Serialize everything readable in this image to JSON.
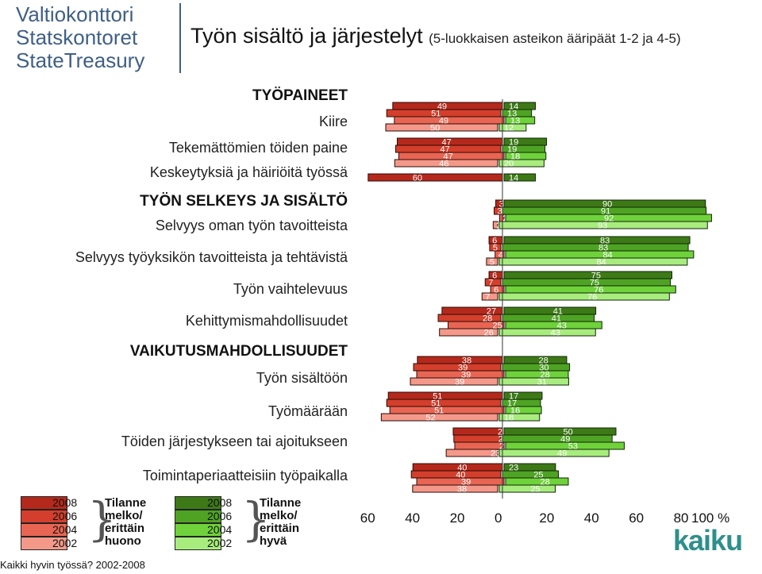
{
  "org": {
    "line1": "Valtiokonttori",
    "line2": "Statskontoret",
    "line3": "StateTreasury"
  },
  "title": {
    "main": "Työn sisältö ja järjestelyt",
    "sub": "(5-luokkaisen asteikon ääripäät 1-2 ja 4-5)"
  },
  "colors": {
    "red": [
      "#b5291c",
      "#d33f2c",
      "#e96553",
      "#f4998a"
    ],
    "green": [
      "#3d7a17",
      "#4fa324",
      "#6fd23b",
      "#a8ec7e"
    ]
  },
  "legend": {
    "years": [
      "2008",
      "2006",
      "2004",
      "2002"
    ],
    "neg_label_1": "Tilanne",
    "neg_label_2": "melko/",
    "neg_label_3": "erittäin",
    "neg_label_4": "huono",
    "pos_label_1": "Tilanne",
    "pos_label_2": "melko/",
    "pos_label_3": "erittäin",
    "pos_label_4": "hyvä"
  },
  "footer": "Kaikki hyvin työssä? 2002-2008",
  "logo": {
    "text": "kaiku",
    "dots": "···"
  },
  "chart_data": {
    "type": "bar",
    "orientation": "horizontal-diverging",
    "title": "Työn sisältö ja järjestelyt",
    "subtitle": "(5-luokkaisen asteikon ääripäät 1-2 ja 4-5)",
    "series_years": [
      "2008",
      "2006",
      "2004",
      "2002"
    ],
    "x_ticks": [
      "60",
      "40",
      "20",
      "0",
      "20",
      "40",
      "60",
      "80",
      "100 %"
    ],
    "xlim": [
      -60,
      100
    ],
    "headers": [
      "TYÖPAINEET",
      "TYÖN SELKEYS JA SISÄLTÖ",
      "VAIKUTUSMAHDOLLISUUDET"
    ],
    "categories": [
      {
        "label": "Kiire",
        "neg": [
          49,
          51,
          49,
          50
        ],
        "pos": [
          14,
          13,
          13,
          12
        ]
      },
      {
        "label": "Tekemättömien töiden paine",
        "neg": [
          47,
          47,
          47,
          46
        ],
        "pos": [
          19,
          19,
          18,
          20
        ]
      },
      {
        "label": "Keskeytyksiä ja häiriöitä työssä",
        "neg": [
          60
        ],
        "pos": [
          14
        ]
      },
      {
        "label": "Selvyys oman työn tavoitteista",
        "neg": [
          3,
          3,
          2,
          2
        ],
        "pos": [
          90,
          91,
          92,
          93
        ]
      },
      {
        "label": "Selvyys työyksikön tavoitteista ja tehtävistä",
        "neg": [
          6,
          5,
          4,
          5
        ],
        "pos": [
          83,
          83,
          84,
          84
        ]
      },
      {
        "label": "Työn vaihtelevuus",
        "neg": [
          6,
          7,
          6,
          7
        ],
        "pos": [
          75,
          75,
          76,
          76
        ]
      },
      {
        "label": "Kehittymismahdollisuudet",
        "neg": [
          27,
          28,
          25,
          26
        ],
        "pos": [
          41,
          41,
          43,
          43
        ]
      },
      {
        "label": "Työn sisältöön",
        "neg": [
          38,
          39,
          39,
          39
        ],
        "pos": [
          28,
          30,
          28,
          31
        ]
      },
      {
        "label": "Työmäärään",
        "neg": [
          51,
          51,
          51,
          52
        ],
        "pos": [
          17,
          17,
          16,
          18
        ]
      },
      {
        "label": "Töiden järjestykseen tai ajoitukseen",
        "neg": [
          22,
          21,
          22,
          23
        ],
        "pos": [
          50,
          49,
          53,
          49
        ]
      },
      {
        "label": "Toimintaperiaatteisiin työpaikalla",
        "neg": [
          40,
          40,
          39,
          38
        ],
        "pos": [
          23,
          25,
          28,
          25
        ]
      }
    ]
  }
}
